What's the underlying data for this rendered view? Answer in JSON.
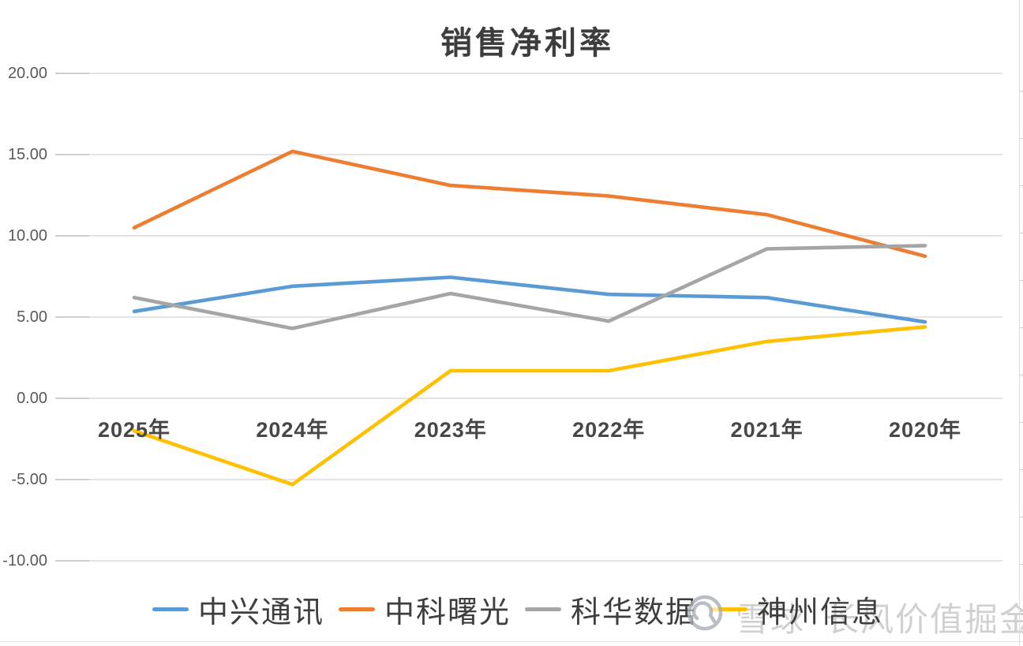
{
  "chart_data": {
    "type": "line",
    "title": "销售净利率",
    "categories": [
      "2025年",
      "2024年",
      "2023年",
      "2022年",
      "2021年",
      "2020年"
    ],
    "series": [
      {
        "name": "中兴通讯",
        "color": "#5B9BD5",
        "values": [
          5.35,
          6.9,
          7.45,
          6.4,
          6.2,
          4.7
        ]
      },
      {
        "name": "中科曙光",
        "color": "#ED7D31",
        "values": [
          10.5,
          15.2,
          13.1,
          12.45,
          11.3,
          8.75
        ]
      },
      {
        "name": "科华数据",
        "color": "#A5A5A5",
        "values": [
          6.2,
          4.3,
          6.45,
          4.75,
          9.2,
          9.4
        ]
      },
      {
        "name": "神州信息",
        "color": "#FFC000",
        "values": [
          -2.0,
          -5.3,
          1.7,
          1.7,
          3.5,
          4.4
        ]
      }
    ],
    "y_axis": {
      "min": -10,
      "max": 20,
      "ticks": [
        20,
        15,
        10,
        5,
        0,
        -5,
        -10
      ],
      "tick_labels": [
        "20.00",
        "15.00",
        "10.00",
        "5.00",
        "0.00",
        "-5.00",
        "-10.00"
      ]
    },
    "grid": true,
    "legend_position": "bottom"
  },
  "watermark": {
    "logo_icon": "xueqiu-logo",
    "brand": "雪球",
    "account": "长风价值掘金"
  },
  "colors": {
    "gridline": "#dbdbdb",
    "gridline_tick": "#c3c3c3",
    "axis_text": "#595959",
    "x_label_text": "#474747",
    "title_text": "#3d3d3d",
    "legend_text": "#3e3e3e",
    "watermark_text": "#d0d0d0"
  }
}
